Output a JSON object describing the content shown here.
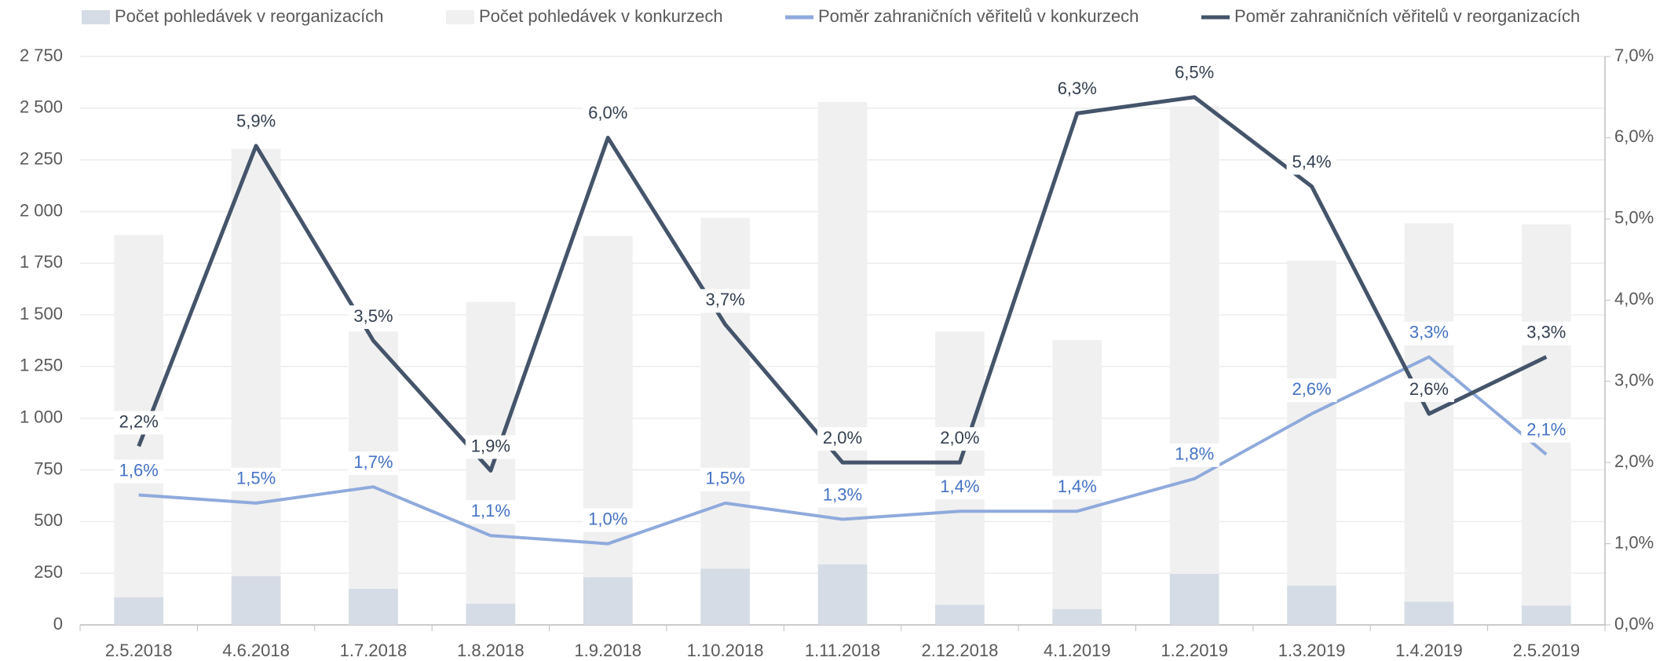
{
  "chart_data": {
    "type": "bar_line",
    "categories": [
      "2.5.2018",
      "4.6.2018",
      "1.7.2018",
      "1.8.2018",
      "1.9.2018",
      "1.10.2018",
      "1.11.2018",
      "2.12.2018",
      "4.1.2019",
      "1.2.2019",
      "1.3.2019",
      "1.4.2019",
      "2.5.2019"
    ],
    "series": [
      {
        "name": "Počet pohledávek v reorganizacích",
        "type": "bar",
        "color": "#d6dce5",
        "values": [
          134,
          236,
          175,
          103,
          231,
          272,
          293,
          98,
          77,
          247,
          190,
          113,
          93
        ]
      },
      {
        "name": "Počet pohledávek v konkurzech",
        "type": "bar",
        "color": "#f0f0f0",
        "values": [
          1753,
          2067,
          1244,
          1460,
          1651,
          1697,
          2237,
          1321,
          1301,
          2262,
          1573,
          1830,
          1845
        ]
      },
      {
        "name": "Poměr zahraničních věřitelů v konkurzech",
        "type": "line",
        "axis": "y2",
        "color": "#8faadc",
        "label_color": "#4472c4",
        "values": [
          1.6,
          1.5,
          1.7,
          1.1,
          1.0,
          1.5,
          1.3,
          1.4,
          1.4,
          1.8,
          2.6,
          3.3,
          2.1
        ],
        "value_labels": [
          "1,6%",
          "1,5%",
          "1,7%",
          "1,1%",
          "1,0%",
          "1,5%",
          "1,3%",
          "1,4%",
          "1,4%",
          "1,8%",
          "2,6%",
          "3,3%",
          "2,1%"
        ]
      },
      {
        "name": "Poměr zahraničních věřitelů v reorganizacích",
        "type": "line",
        "axis": "y2",
        "color": "#44546a",
        "label_color": "#333f50",
        "values": [
          2.2,
          5.9,
          3.5,
          1.9,
          6.0,
          3.7,
          2.0,
          2.0,
          6.3,
          6.5,
          5.4,
          2.6,
          3.3
        ],
        "value_labels": [
          "2,2%",
          "5,9%",
          "3,5%",
          "1,9%",
          "6,0%",
          "3,7%",
          "2,0%",
          "2,0%",
          "6,3%",
          "6,5%",
          "5,4%",
          "2,6%",
          "3,3%"
        ]
      }
    ],
    "ylim": [
      0,
      2750
    ],
    "yticks": [
      0,
      250,
      500,
      750,
      {
        "value": 1000,
        "label": "1 000"
      },
      {
        "value": 1250,
        "label": "1 250"
      },
      {
        "value": 1500,
        "label": "1 500"
      },
      {
        "value": 1750,
        "label": "1 750"
      },
      {
        "value": 2000,
        "label": "2 000"
      },
      {
        "value": 2250,
        "label": "2 250"
      },
      {
        "value": 2500,
        "label": "2 500"
      },
      {
        "value": 2750,
        "label": "2 750"
      }
    ],
    "y2lim": [
      0,
      7
    ],
    "y2ticks": [
      {
        "value": 0,
        "label": "0,0%"
      },
      {
        "value": 1,
        "label": "1,0%"
      },
      {
        "value": 2,
        "label": "2,0%"
      },
      {
        "value": 3,
        "label": "3,0%"
      },
      {
        "value": 4,
        "label": "4,0%"
      },
      {
        "value": 5,
        "label": "5,0%"
      },
      {
        "value": 6,
        "label": "6,0%"
      },
      {
        "value": 7,
        "label": "7,0%"
      }
    ],
    "grid": true,
    "legend": "top"
  }
}
